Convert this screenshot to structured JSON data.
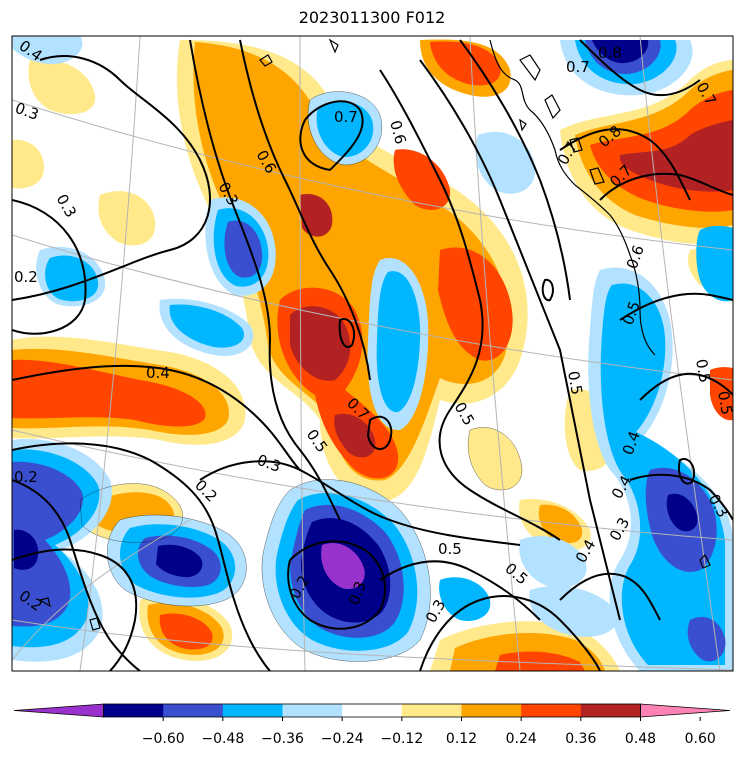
{
  "title": "2023011300 F012",
  "colors": {
    "fill_neg": [
      "#9932cc",
      "#00008b",
      "#3a4fd0",
      "#00b7ff",
      "#b2e2ff"
    ],
    "fill_pos": [
      "#ffe98a",
      "#ffa500",
      "#ff4500",
      "#b22222",
      "#ff82b4"
    ],
    "contour": "#000000",
    "grid": "#b4b4b4",
    "coast": "#000000"
  },
  "colorbar": {
    "bins": [
      "#9932cc",
      "#00008b",
      "#3a4fd0",
      "#00b7ff",
      "#b2e2ff",
      "#ffffff",
      "#ffe98a",
      "#ffa500",
      "#ff4500",
      "#b22222",
      "#ff82b4"
    ],
    "ticks": [
      "−0.60",
      "−0.48",
      "−0.36",
      "−0.24",
      "−0.12",
      "0.12",
      "0.24",
      "0.36",
      "0.48",
      "0.60"
    ]
  },
  "contour_labels": [
    {
      "text": "0.4"
    },
    {
      "text": "0.3"
    },
    {
      "text": "0.3"
    },
    {
      "text": "0.2"
    },
    {
      "text": "0.3"
    },
    {
      "text": "0.6"
    },
    {
      "text": "0.7"
    },
    {
      "text": "0.6"
    },
    {
      "text": "0.4"
    },
    {
      "text": "0.3"
    },
    {
      "text": "0.2"
    },
    {
      "text": "0.2"
    },
    {
      "text": "0.5"
    },
    {
      "text": "0.7"
    },
    {
      "text": "0.5"
    },
    {
      "text": "0.5"
    },
    {
      "text": "0.5"
    },
    {
      "text": "0.5"
    },
    {
      "text": "0.3"
    },
    {
      "text": "0.2"
    },
    {
      "text": "0.2"
    },
    {
      "text": "0.3"
    },
    {
      "text": "0.4"
    },
    {
      "text": "0.4"
    },
    {
      "text": "0.3"
    },
    {
      "text": "0.4"
    },
    {
      "text": "0.5"
    },
    {
      "text": "0.5"
    },
    {
      "text": "0.6"
    },
    {
      "text": "0.5"
    },
    {
      "text": "0.3"
    },
    {
      "text": "0.8"
    },
    {
      "text": "0.7"
    },
    {
      "text": "0.7"
    },
    {
      "text": "0.8"
    },
    {
      "text": "0.7"
    },
    {
      "text": "0.7"
    }
  ]
}
